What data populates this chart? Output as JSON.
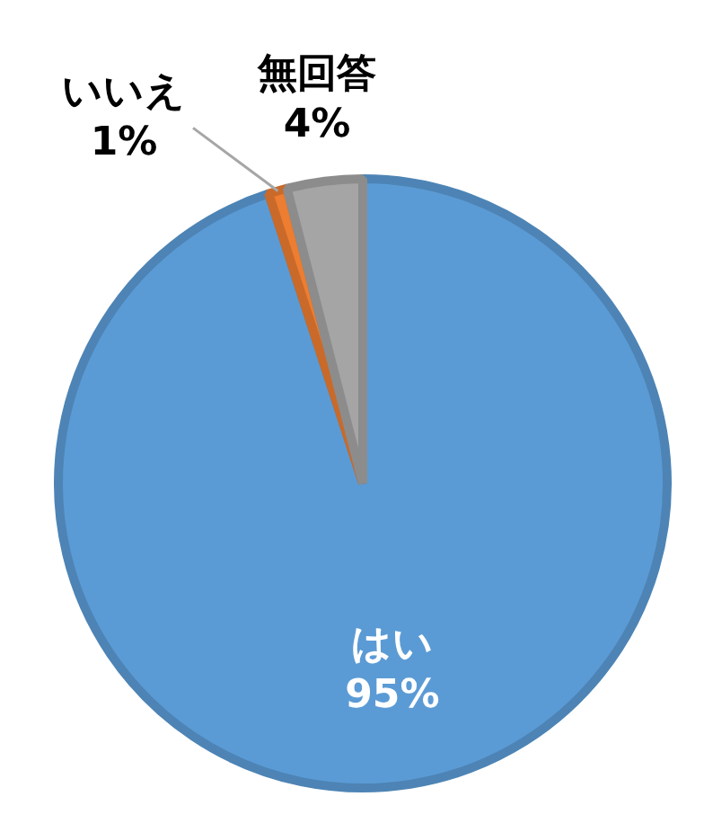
{
  "chart_data": {
    "type": "pie",
    "categories": [
      "はい",
      "いいえ",
      "無回答"
    ],
    "values": [
      95,
      1,
      4
    ],
    "colors": [
      "#5b9bd5",
      "#ed7d31",
      "#a5a5a5"
    ],
    "value_labels": [
      "95%",
      "1%",
      "4%"
    ],
    "legend": false
  }
}
